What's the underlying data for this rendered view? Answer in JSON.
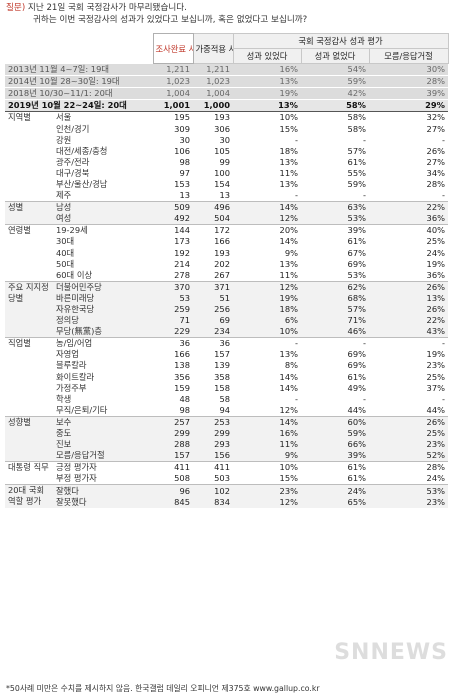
{
  "question": {
    "label": "질문)",
    "line1": "지난 21일 국회 국정감사가 마무리됐습니다.",
    "line2": "귀하는 이번 국정감사의 성과가 있었다고 보십니까, 혹은 없었다고 보십니까?"
  },
  "headers": {
    "completed": "조사완료 사례수 (명)",
    "weighted": "가중적용 사례수 (명)",
    "group": "국회 국정감사 성과 평가",
    "had_results": "성과 있었다",
    "no_results": "성과 없었다",
    "dont_know": "모름/응답거절"
  },
  "historical_rows": [
    {
      "name": "2013년 11월 4~7일: 19대",
      "n1": "1,211",
      "n2": "1,211",
      "a": "16%",
      "b": "54%",
      "c": "30%"
    },
    {
      "name": "2014년 10월 28~30일: 19대",
      "n1": "1,023",
      "n2": "1,023",
      "a": "13%",
      "b": "59%",
      "c": "28%"
    },
    {
      "name": "2018년 10/30~11/1: 20대",
      "n1": "1,004",
      "n2": "1,004",
      "a": "19%",
      "b": "42%",
      "c": "39%"
    }
  ],
  "current_row": {
    "name": "2019년 10월 22~24일: 20대",
    "n1": "1,001",
    "n2": "1,000",
    "a": "13%",
    "b": "58%",
    "c": "29%"
  },
  "segments": [
    {
      "label": "지역별",
      "shade": false,
      "rows": [
        {
          "cat": "서울",
          "n1": "195",
          "n2": "193",
          "a": "10%",
          "b": "58%",
          "c": "32%"
        },
        {
          "cat": "인천/경기",
          "n1": "309",
          "n2": "306",
          "a": "15%",
          "b": "58%",
          "c": "27%"
        },
        {
          "cat": "강원",
          "n1": "30",
          "n2": "30",
          "a": "-",
          "b": "-",
          "c": "-"
        },
        {
          "cat": "대전/세종/충청",
          "n1": "106",
          "n2": "105",
          "a": "18%",
          "b": "57%",
          "c": "26%"
        },
        {
          "cat": "광주/전라",
          "n1": "98",
          "n2": "99",
          "a": "13%",
          "b": "61%",
          "c": "27%"
        },
        {
          "cat": "대구/경북",
          "n1": "97",
          "n2": "100",
          "a": "11%",
          "b": "55%",
          "c": "34%"
        },
        {
          "cat": "부산/울산/경남",
          "n1": "153",
          "n2": "154",
          "a": "13%",
          "b": "59%",
          "c": "28%"
        },
        {
          "cat": "제주",
          "n1": "13",
          "n2": "13",
          "a": "-",
          "b": "-",
          "c": "-"
        }
      ]
    },
    {
      "label": "성별",
      "shade": true,
      "rows": [
        {
          "cat": "남성",
          "n1": "509",
          "n2": "496",
          "a": "14%",
          "b": "63%",
          "c": "22%"
        },
        {
          "cat": "여성",
          "n1": "492",
          "n2": "504",
          "a": "12%",
          "b": "53%",
          "c": "36%"
        }
      ]
    },
    {
      "label": "연령별",
      "shade": false,
      "rows": [
        {
          "cat": "19-29세",
          "n1": "144",
          "n2": "172",
          "a": "20%",
          "b": "39%",
          "c": "40%"
        },
        {
          "cat": "30대",
          "n1": "173",
          "n2": "166",
          "a": "14%",
          "b": "61%",
          "c": "25%"
        },
        {
          "cat": "40대",
          "n1": "192",
          "n2": "193",
          "a": "9%",
          "b": "67%",
          "c": "24%"
        },
        {
          "cat": "50대",
          "n1": "214",
          "n2": "202",
          "a": "13%",
          "b": "69%",
          "c": "19%"
        },
        {
          "cat": "60대 이상",
          "n1": "278",
          "n2": "267",
          "a": "11%",
          "b": "53%",
          "c": "36%"
        }
      ]
    },
    {
      "label": "주요 지지정당별",
      "shade": true,
      "rows": [
        {
          "cat": "더불어민주당",
          "n1": "370",
          "n2": "371",
          "a": "12%",
          "b": "62%",
          "c": "26%"
        },
        {
          "cat": "바른미래당",
          "n1": "53",
          "n2": "51",
          "a": "19%",
          "b": "68%",
          "c": "13%"
        },
        {
          "cat": "자유한국당",
          "n1": "259",
          "n2": "256",
          "a": "18%",
          "b": "57%",
          "c": "26%"
        },
        {
          "cat": "정의당",
          "n1": "71",
          "n2": "69",
          "a": "6%",
          "b": "71%",
          "c": "22%"
        },
        {
          "cat": "무당(無黨)층",
          "n1": "229",
          "n2": "234",
          "a": "10%",
          "b": "46%",
          "c": "43%"
        }
      ]
    },
    {
      "label": "직업별",
      "shade": false,
      "rows": [
        {
          "cat": "농/임/어업",
          "n1": "36",
          "n2": "36",
          "a": "-",
          "b": "-",
          "c": "-"
        },
        {
          "cat": "자영업",
          "n1": "166",
          "n2": "157",
          "a": "13%",
          "b": "69%",
          "c": "19%"
        },
        {
          "cat": "블루칼라",
          "n1": "138",
          "n2": "139",
          "a": "8%",
          "b": "69%",
          "c": "23%"
        },
        {
          "cat": "화이트칼라",
          "n1": "356",
          "n2": "358",
          "a": "14%",
          "b": "61%",
          "c": "25%"
        },
        {
          "cat": "가정주부",
          "n1": "159",
          "n2": "158",
          "a": "14%",
          "b": "49%",
          "c": "37%"
        },
        {
          "cat": "학생",
          "n1": "48",
          "n2": "58",
          "a": "-",
          "b": "-",
          "c": "-"
        },
        {
          "cat": "무직/은퇴/기타",
          "n1": "98",
          "n2": "94",
          "a": "12%",
          "b": "44%",
          "c": "44%"
        }
      ]
    },
    {
      "label": "성향별",
      "shade": true,
      "rows": [
        {
          "cat": "보수",
          "n1": "257",
          "n2": "253",
          "a": "14%",
          "b": "60%",
          "c": "26%"
        },
        {
          "cat": "중도",
          "n1": "299",
          "n2": "299",
          "a": "16%",
          "b": "59%",
          "c": "25%"
        },
        {
          "cat": "진보",
          "n1": "288",
          "n2": "293",
          "a": "11%",
          "b": "66%",
          "c": "23%"
        },
        {
          "cat": "모름/응답거절",
          "n1": "157",
          "n2": "156",
          "a": "9%",
          "b": "39%",
          "c": "52%"
        }
      ]
    },
    {
      "label": "대통령 직무",
      "shade": false,
      "rows": [
        {
          "cat": "긍정 평가자",
          "n1": "411",
          "n2": "411",
          "a": "10%",
          "b": "61%",
          "c": "28%"
        },
        {
          "cat": "부정 평가자",
          "n1": "508",
          "n2": "503",
          "a": "15%",
          "b": "61%",
          "c": "24%"
        }
      ]
    },
    {
      "label": "20대 국회 역할 평가",
      "shade": true,
      "rows": [
        {
          "cat": "잘했다",
          "n1": "96",
          "n2": "102",
          "a": "23%",
          "b": "24%",
          "c": "53%"
        },
        {
          "cat": "잘못했다",
          "n1": "845",
          "n2": "834",
          "a": "12%",
          "b": "65%",
          "c": "23%"
        }
      ]
    }
  ],
  "footnote": "*50사례 미만은 수치를 제시하지 않음. 한국갤럽 데일리 오피니언 제375호 www.gallup.co.kr",
  "watermark": "SNNEWS"
}
